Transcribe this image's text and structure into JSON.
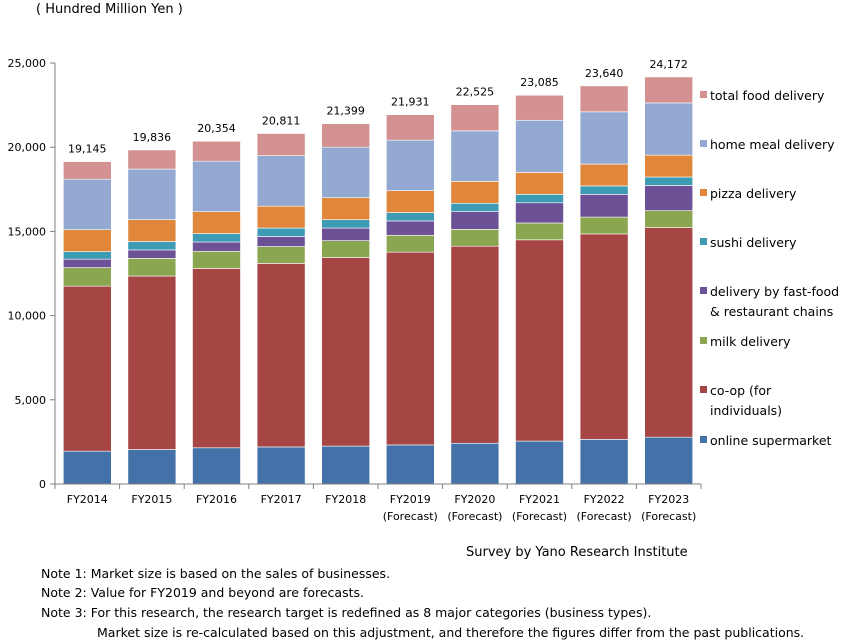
{
  "unit_label": "( Hundred Million Yen )",
  "source": "Survey by Yano Research Institute",
  "notes": [
    "Note 1:  Market size is based on the sales of businesses.",
    "Note 2:  Value for FY2019 and beyond are forecasts.",
    "Note 3:  For this research, the research target is redefined as 8 major categories (business types).",
    "Market size is re-calculated based on this adjustment, and therefore the figures differ from the past publications."
  ],
  "chart_data": {
    "type": "bar",
    "stacked": true,
    "ylim": [
      0,
      25000
    ],
    "yticks": [
      "0",
      "5,000",
      "10,000",
      "15,000",
      "20,000",
      "25,000"
    ],
    "ytick_values": [
      0,
      5000,
      10000,
      15000,
      20000,
      25000
    ],
    "categories": [
      "FY2014",
      "FY2015",
      "FY2016",
      "FY2017",
      "FY2018",
      "FY2019",
      "FY2020",
      "FY2021",
      "FY2022",
      "FY2023"
    ],
    "category_sublabels": [
      "",
      "",
      "",
      "",
      "",
      "(Forecast)",
      "(Forecast)",
      "(Forecast)",
      "(Forecast)",
      "(Forecast)"
    ],
    "totals": [
      19145,
      19836,
      20354,
      20811,
      21399,
      21931,
      22525,
      23085,
      23640,
      24172
    ],
    "total_labels": [
      "19,145",
      "19,836",
      "20,354",
      "20,811",
      "21,399",
      "21,931",
      "22,525",
      "23,085",
      "23,640",
      "24,172"
    ],
    "legend_position": "right",
    "series": [
      {
        "name": "online supermarket",
        "color": "#4472a8",
        "values": [
          1950,
          2050,
          2150,
          2200,
          2250,
          2320,
          2420,
          2550,
          2650,
          2780
        ]
      },
      {
        "name": "co-op (for individuals)",
        "color": "#a64644",
        "values": [
          9800,
          10300,
          10650,
          10900,
          11200,
          11450,
          11700,
          11950,
          12200,
          12450
        ]
      },
      {
        "name": "milk delivery",
        "color": "#8ba650",
        "values": [
          1100,
          1050,
          1020,
          1000,
          1000,
          1000,
          1000,
          1000,
          1000,
          1000
        ]
      },
      {
        "name": "delivery by fast-food & restaurant chains",
        "color": "#6d5196",
        "values": [
          500,
          500,
          550,
          600,
          750,
          850,
          1050,
          1200,
          1350,
          1500
        ]
      },
      {
        "name": "sushi delivery",
        "color": "#3e9bb4",
        "values": [
          450,
          500,
          500,
          500,
          500,
          500,
          500,
          500,
          500,
          500
        ]
      },
      {
        "name": "pizza delivery",
        "color": "#e0873b",
        "values": [
          1300,
          1300,
          1300,
          1300,
          1300,
          1300,
          1300,
          1300,
          1300,
          1300
        ]
      },
      {
        "name": "home meal delivery",
        "color": "#93a9d1",
        "values": [
          3000,
          3000,
          3000,
          3000,
          3000,
          3000,
          3000,
          3100,
          3100,
          3100
        ]
      },
      {
        "name": "total food delivery",
        "color": "#d39191",
        "values": [
          1045,
          1136,
          1184,
          1311,
          1399,
          1511,
          1555,
          1485,
          1540,
          1542
        ]
      }
    ],
    "legend_lines": [
      [
        "total food delivery"
      ],
      [
        "home meal delivery"
      ],
      [
        "pizza delivery"
      ],
      [
        "sushi delivery"
      ],
      [
        "delivery by fast-food",
        "& restaurant chains"
      ],
      [
        "milk delivery"
      ],
      [
        "co-op (for",
        "individuals)"
      ],
      [
        "online supermarket"
      ]
    ]
  }
}
